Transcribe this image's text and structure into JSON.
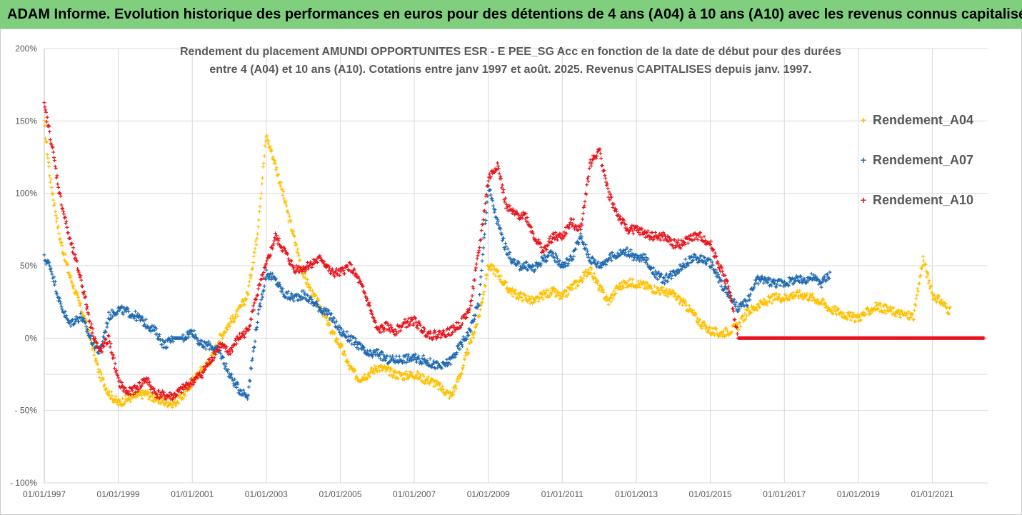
{
  "banner": {
    "title": "ADAM Informe. Evolution historique des performances en euros pour des détentions de 4 ans (A04) à 10 ans (A10) avec les revenus connus capitalisés"
  },
  "chart_data": {
    "type": "scatter",
    "title": "Rendement du placement AMUNDI OPPORTUNITES ESR - E PEE_SG Acc en fonction de la date de début pour des durées",
    "title_line2": "entre 4 (A04) et 10 ans (A10). Cotations entre janv 1997 et août. 2025. Revenus CAPITALISES depuis janv. 1997.",
    "xlabel": "",
    "ylabel": "",
    "xlim": [
      "1997-01-01",
      "2022-07-01"
    ],
    "ylim": [
      -100,
      200
    ],
    "y_ticks": [
      -100,
      -50,
      0,
      50,
      100,
      150,
      200
    ],
    "y_tick_labels": [
      "- 100%",
      "- 50%",
      "0%",
      "50%",
      "100%",
      "150%",
      "200%"
    ],
    "x_ticks": [
      "1997-01-01",
      "1999-01-01",
      "2001-01-01",
      "2003-01-01",
      "2005-01-01",
      "2007-01-01",
      "2009-01-01",
      "2011-01-01",
      "2013-01-01",
      "2015-01-01",
      "2017-01-01",
      "2019-01-01",
      "2021-01-01"
    ],
    "x_tick_labels": [
      "01/01/1997",
      "01/01/1999",
      "01/01/2001",
      "01/01/2003",
      "01/01/2005",
      "01/01/2007",
      "01/01/2009",
      "01/01/2011",
      "01/01/2013",
      "01/01/2015",
      "01/01/2017",
      "01/01/2019",
      "01/01/2021"
    ],
    "grid": true,
    "legend_position": "right",
    "series": [
      {
        "name": "Rendement_A04",
        "color": "#ffc000",
        "x": [
          "1997-01-01",
          "1997-03-01",
          "1997-06-01",
          "1997-09-01",
          "1998-01-01",
          "1998-04-01",
          "1998-07-01",
          "1998-10-01",
          "1999-01-01",
          "1999-04-01",
          "1999-07-01",
          "1999-10-01",
          "2000-01-01",
          "2000-04-01",
          "2000-07-01",
          "2000-10-01",
          "2001-01-01",
          "2001-04-01",
          "2001-07-01",
          "2001-10-01",
          "2002-01-01",
          "2002-04-01",
          "2002-07-01",
          "2002-10-01",
          "2003-01-01",
          "2003-04-01",
          "2003-07-01",
          "2003-10-01",
          "2004-01-01",
          "2004-04-01",
          "2004-07-01",
          "2004-10-01",
          "2005-01-01",
          "2005-04-01",
          "2005-07-01",
          "2005-10-01",
          "2006-01-01",
          "2006-04-01",
          "2006-07-01",
          "2006-10-01",
          "2007-01-01",
          "2007-04-01",
          "2007-07-01",
          "2007-10-01",
          "2008-01-01",
          "2008-04-01",
          "2008-07-01",
          "2008-10-01",
          "2009-01-01",
          "2009-04-01",
          "2009-07-01",
          "2009-10-01",
          "2010-01-01",
          "2010-04-01",
          "2010-07-01",
          "2010-10-01",
          "2011-01-01",
          "2011-04-01",
          "2011-07-01",
          "2011-10-01",
          "2012-01-01",
          "2012-04-01",
          "2012-07-01",
          "2012-10-01",
          "2013-01-01",
          "2013-04-01",
          "2013-07-01",
          "2013-10-01",
          "2014-01-01",
          "2014-04-01",
          "2014-07-01",
          "2014-10-01",
          "2015-01-01",
          "2015-04-01",
          "2015-07-01",
          "2015-10-01",
          "2016-01-01",
          "2016-04-01",
          "2016-07-01",
          "2016-10-01",
          "2017-01-01",
          "2017-04-01",
          "2017-07-01",
          "2017-10-01",
          "2018-01-01",
          "2018-04-01",
          "2018-07-01",
          "2018-10-01",
          "2019-01-01",
          "2019-04-01",
          "2019-07-01",
          "2019-10-01",
          "2020-01-01",
          "2020-04-01",
          "2020-07-01",
          "2020-10-01",
          "2021-01-01",
          "2021-04-01",
          "2021-07-01"
        ],
        "values": [
          148,
          110,
          70,
          45,
          20,
          0,
          -25,
          -38,
          -45,
          -42,
          -40,
          -38,
          -42,
          -44,
          -45,
          -40,
          -30,
          -22,
          -15,
          0,
          10,
          18,
          30,
          70,
          140,
          120,
          95,
          70,
          45,
          30,
          20,
          5,
          -5,
          -20,
          -28,
          -25,
          -20,
          -22,
          -25,
          -26,
          -25,
          -28,
          -30,
          -35,
          -40,
          -25,
          -5,
          15,
          50,
          45,
          35,
          30,
          28,
          25,
          30,
          32,
          28,
          35,
          40,
          48,
          35,
          25,
          35,
          38,
          38,
          36,
          34,
          32,
          30,
          25,
          18,
          10,
          5,
          3,
          5,
          8,
          18,
          22,
          25,
          28,
          28,
          30,
          30,
          28,
          25,
          20,
          18,
          15,
          14,
          18,
          22,
          20,
          18,
          16,
          15,
          55,
          30,
          25,
          18
        ]
      },
      {
        "name": "Rendement_A07",
        "color": "#1f6ab0",
        "x": [
          "1997-01-01",
          "1997-03-01",
          "1997-06-01",
          "1997-09-01",
          "1998-01-01",
          "1998-04-01",
          "1998-07-01",
          "1998-10-01",
          "1999-01-01",
          "1999-04-01",
          "1999-07-01",
          "1999-10-01",
          "2000-01-01",
          "2000-04-01",
          "2000-07-01",
          "2000-10-01",
          "2001-01-01",
          "2001-04-01",
          "2001-07-01",
          "2001-10-01",
          "2002-01-01",
          "2002-04-01",
          "2002-07-01",
          "2002-10-01",
          "2003-01-01",
          "2003-04-01",
          "2003-07-01",
          "2003-10-01",
          "2004-01-01",
          "2004-04-01",
          "2004-07-01",
          "2004-10-01",
          "2005-01-01",
          "2005-04-01",
          "2005-07-01",
          "2005-10-01",
          "2006-01-01",
          "2006-04-01",
          "2006-07-01",
          "2006-10-01",
          "2007-01-01",
          "2007-04-01",
          "2007-07-01",
          "2007-10-01",
          "2008-01-01",
          "2008-04-01",
          "2008-07-01",
          "2008-10-01",
          "2009-01-01",
          "2009-04-01",
          "2009-07-01",
          "2009-10-01",
          "2010-01-01",
          "2010-04-01",
          "2010-07-01",
          "2010-10-01",
          "2011-01-01",
          "2011-04-01",
          "2011-07-01",
          "2011-10-01",
          "2012-01-01",
          "2012-04-01",
          "2012-07-01",
          "2012-10-01",
          "2013-01-01",
          "2013-04-01",
          "2013-07-01",
          "2013-10-01",
          "2014-01-01",
          "2014-04-01",
          "2014-07-01",
          "2014-10-01",
          "2015-01-01",
          "2015-04-01",
          "2015-07-01",
          "2015-10-01",
          "2016-01-01",
          "2016-04-01",
          "2016-07-01",
          "2016-10-01",
          "2017-01-01",
          "2017-04-01",
          "2017-07-01",
          "2017-10-01",
          "2018-01-01",
          "2018-04-01"
        ],
        "values": [
          55,
          50,
          25,
          10,
          15,
          0,
          -10,
          15,
          20,
          18,
          15,
          10,
          5,
          -5,
          0,
          0,
          5,
          -5,
          -5,
          -10,
          -25,
          -35,
          -40,
          10,
          45,
          40,
          30,
          28,
          30,
          25,
          20,
          15,
          5,
          0,
          -5,
          -12,
          -10,
          -15,
          -15,
          -14,
          -14,
          -15,
          -18,
          -20,
          -15,
          -5,
          5,
          25,
          105,
          80,
          60,
          50,
          50,
          48,
          55,
          58,
          50,
          55,
          70,
          55,
          50,
          55,
          58,
          60,
          55,
          55,
          45,
          40,
          45,
          50,
          55,
          55,
          52,
          40,
          30,
          20,
          25,
          40,
          40,
          38,
          38,
          40,
          40,
          42,
          38,
          45
        ]
      },
      {
        "name": "Rendement_A10",
        "color": "#e8141c",
        "x": [
          "1997-01-01",
          "1997-03-01",
          "1997-06-01",
          "1997-09-01",
          "1998-01-01",
          "1998-04-01",
          "1998-07-01",
          "1998-10-01",
          "1999-01-01",
          "1999-04-01",
          "1999-07-01",
          "1999-10-01",
          "2000-01-01",
          "2000-04-01",
          "2000-07-01",
          "2000-10-01",
          "2001-01-01",
          "2001-04-01",
          "2001-07-01",
          "2001-10-01",
          "2002-01-01",
          "2002-04-01",
          "2002-07-01",
          "2002-10-01",
          "2003-01-01",
          "2003-04-01",
          "2003-07-01",
          "2003-10-01",
          "2004-01-01",
          "2004-04-01",
          "2004-07-01",
          "2004-10-01",
          "2005-01-01",
          "2005-04-01",
          "2005-07-01",
          "2005-10-01",
          "2006-01-01",
          "2006-04-01",
          "2006-07-01",
          "2006-10-01",
          "2007-01-01",
          "2007-04-01",
          "2007-07-01",
          "2007-10-01",
          "2008-01-01",
          "2008-04-01",
          "2008-07-01",
          "2008-10-01",
          "2009-01-01",
          "2009-04-01",
          "2009-07-01",
          "2009-10-01",
          "2010-01-01",
          "2010-04-01",
          "2010-07-01",
          "2010-10-01",
          "2011-01-01",
          "2011-04-01",
          "2011-07-01",
          "2011-10-01",
          "2012-01-01",
          "2012-04-01",
          "2012-07-01",
          "2012-10-01",
          "2013-01-01",
          "2013-04-01",
          "2013-07-01",
          "2013-10-01",
          "2014-01-01",
          "2014-04-01",
          "2014-07-01",
          "2014-10-01",
          "2015-01-01",
          "2015-04-01",
          "2015-07-01",
          "2015-10-01",
          "2016-01-01",
          "2016-04-01",
          "2016-07-01",
          "2016-10-01",
          "2017-01-01",
          "2017-04-01",
          "2017-07-01",
          "2017-10-01",
          "2018-01-01",
          "2018-04-01",
          "2018-07-01",
          "2018-10-01",
          "2019-01-01",
          "2019-04-01",
          "2019-07-01",
          "2019-10-01",
          "2020-01-01",
          "2020-04-01",
          "2020-07-01",
          "2020-10-01",
          "2021-01-01",
          "2021-04-01",
          "2021-07-01",
          "2022-01-01",
          "2022-06-01"
        ],
        "values": [
          160,
          140,
          100,
          70,
          40,
          10,
          -10,
          0,
          -30,
          -38,
          -35,
          -28,
          -38,
          -40,
          -40,
          -35,
          -30,
          -25,
          -15,
          -5,
          -10,
          0,
          5,
          30,
          50,
          70,
          60,
          48,
          48,
          52,
          55,
          45,
          45,
          50,
          40,
          25,
          5,
          8,
          5,
          10,
          12,
          5,
          2,
          3,
          5,
          10,
          20,
          60,
          110,
          120,
          90,
          85,
          85,
          70,
          60,
          70,
          70,
          80,
          75,
          120,
          130,
          100,
          85,
          75,
          75,
          72,
          70,
          70,
          65,
          65,
          70,
          70,
          65,
          50,
          35,
          0,
          0,
          0,
          0,
          0,
          0,
          0,
          0,
          0,
          0,
          0,
          0,
          0,
          0,
          0,
          0,
          0,
          0,
          0,
          0,
          0,
          0,
          0,
          0,
          0,
          0
        ]
      }
    ]
  }
}
